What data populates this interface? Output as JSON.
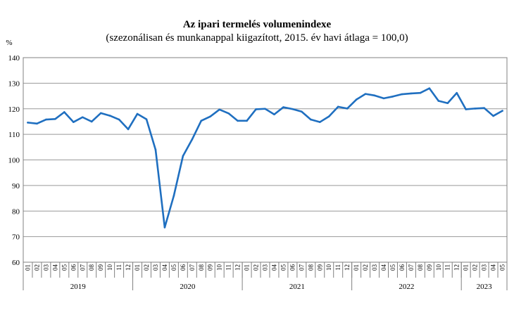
{
  "chart_data": {
    "type": "line",
    "title": "Az ipari termelés volumenindexe",
    "subtitle": "(szezonálisan és munkanappal kiigazított, 2015. év havi átlaga = 100,0)",
    "ylabel": "%",
    "xlabel": "",
    "ylim": [
      60,
      140
    ],
    "yticks": [
      60,
      70,
      80,
      90,
      100,
      110,
      120,
      130,
      140
    ],
    "grid": true,
    "legend": "none",
    "line_color": "#1f6fc0",
    "years": [
      {
        "label": "2019",
        "months": 12
      },
      {
        "label": "2020",
        "months": 12
      },
      {
        "label": "2021",
        "months": 12
      },
      {
        "label": "2022",
        "months": 12
      },
      {
        "label": "2023",
        "months": 5
      }
    ],
    "x": [
      "2019-01",
      "2019-02",
      "2019-03",
      "2019-04",
      "2019-05",
      "2019-06",
      "2019-07",
      "2019-08",
      "2019-09",
      "2019-10",
      "2019-11",
      "2019-12",
      "2020-01",
      "2020-02",
      "2020-03",
      "2020-04",
      "2020-05",
      "2020-06",
      "2020-07",
      "2020-08",
      "2020-09",
      "2020-10",
      "2020-11",
      "2020-12",
      "2021-01",
      "2021-02",
      "2021-03",
      "2021-04",
      "2021-05",
      "2021-06",
      "2021-07",
      "2021-08",
      "2021-09",
      "2021-10",
      "2021-11",
      "2021-12",
      "2022-01",
      "2022-02",
      "2022-03",
      "2022-04",
      "2022-05",
      "2022-06",
      "2022-07",
      "2022-08",
      "2022-09",
      "2022-10",
      "2022-11",
      "2022-12",
      "2023-01",
      "2023-02",
      "2023-03",
      "2023-04",
      "2023-05"
    ],
    "series": [
      {
        "values": [
          114.6,
          114.2,
          115.8,
          116.0,
          118.7,
          114.8,
          116.7,
          115.0,
          118.3,
          117.3,
          115.8,
          112.0,
          118.0,
          115.9,
          104.0,
          73.6,
          86.0,
          101.5,
          108.0,
          115.3,
          117.0,
          119.7,
          118.2,
          115.3,
          115.3,
          119.8,
          120.0,
          117.8,
          120.6,
          119.9,
          118.9,
          115.8,
          114.8,
          117.0,
          120.8,
          120.1,
          123.6,
          125.8,
          125.2,
          124.1,
          124.8,
          125.7,
          126.0,
          126.2,
          128.0,
          123.1,
          122.2,
          126.2,
          119.8,
          120.1,
          120.3,
          117.2,
          119.2
        ]
      }
    ]
  }
}
